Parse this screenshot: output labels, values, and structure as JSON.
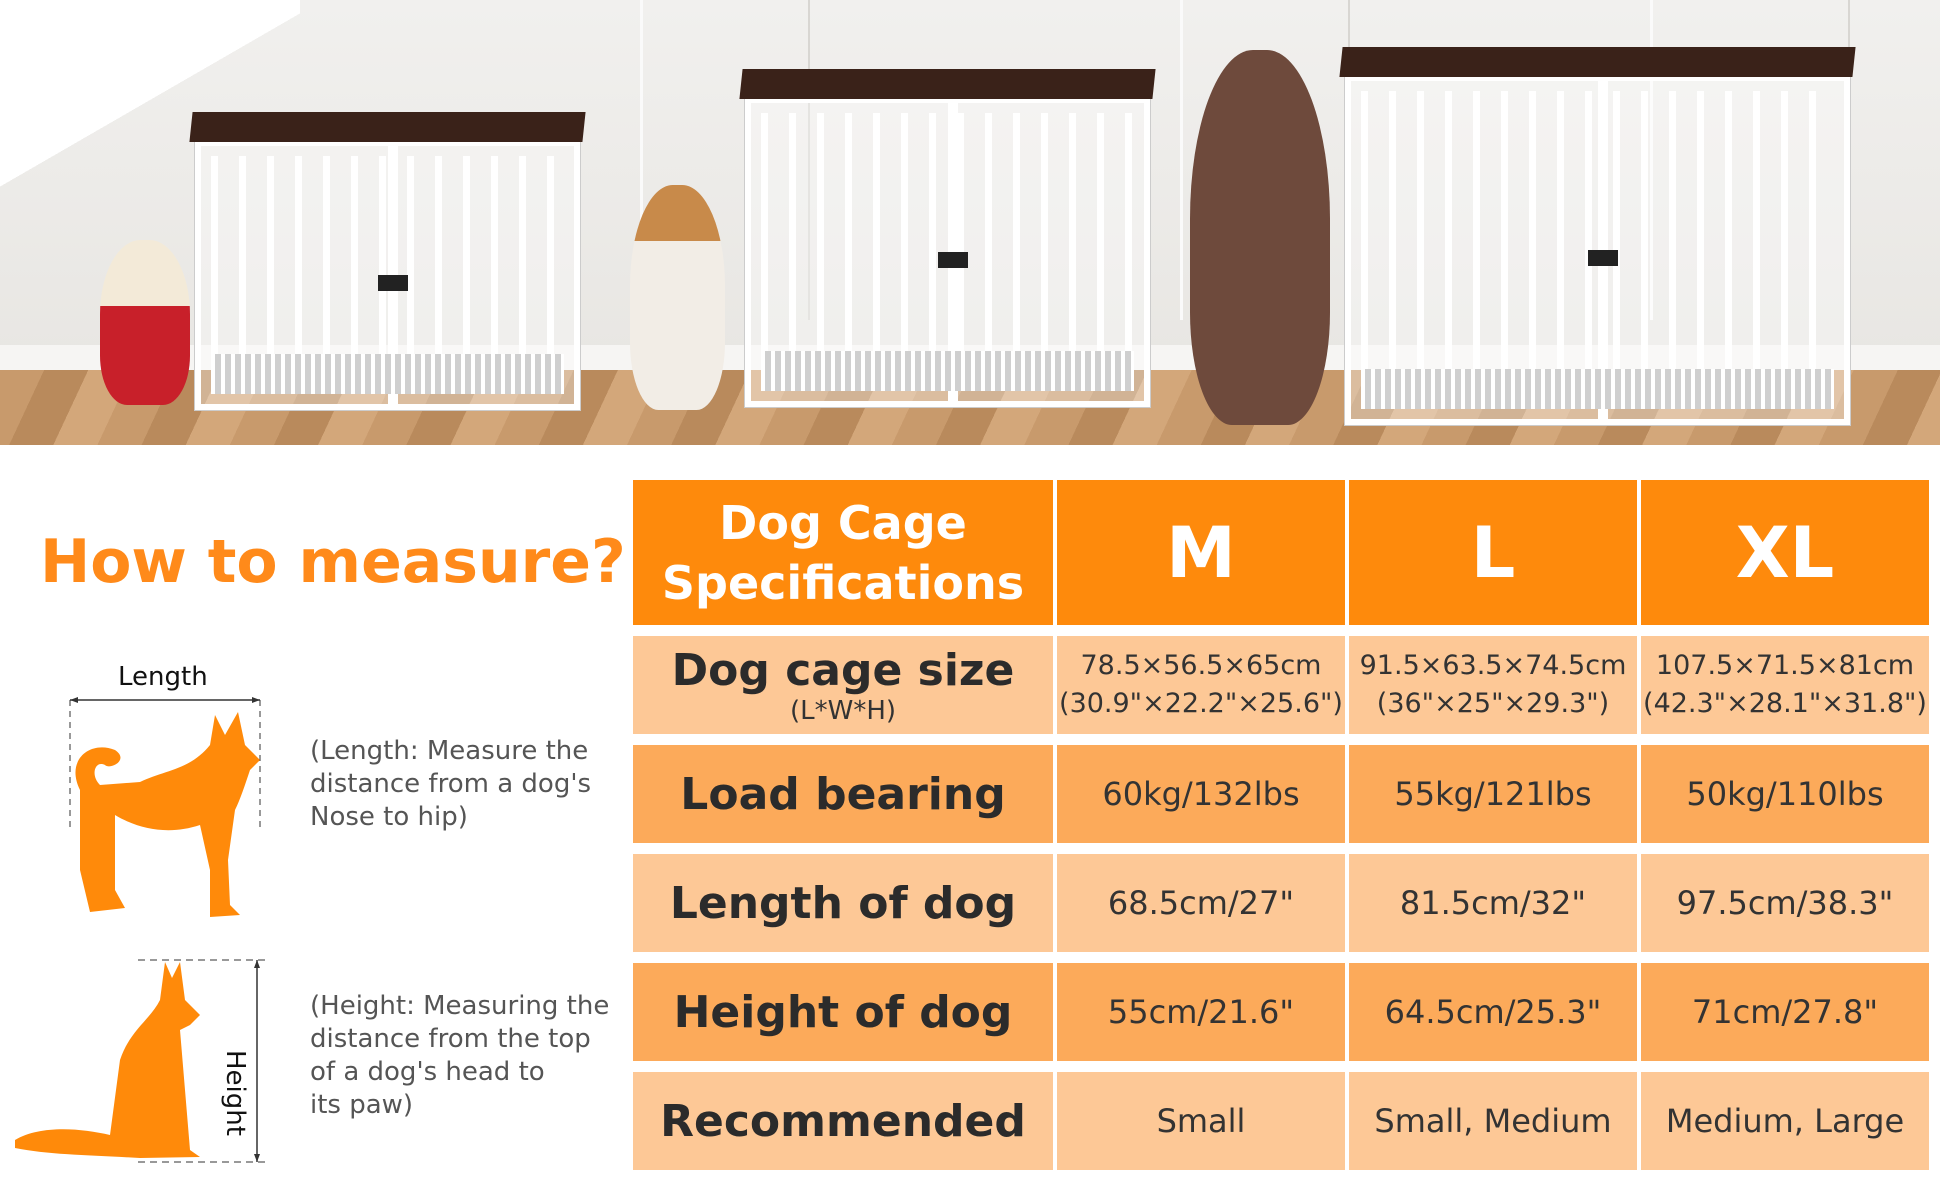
{
  "colors": {
    "accent": "#fe8a0c",
    "title": "#ff8a1a",
    "row_light": "#fdc896",
    "row_medium": "#fcaa5a"
  },
  "photo": {
    "description_icons": [
      "cage-m",
      "cage-l",
      "cage-xl",
      "dog-small",
      "dog-beagle",
      "dog-large"
    ]
  },
  "measure": {
    "title": "How to measure?",
    "length_label": "Length",
    "length_desc": [
      "(Length: Measure the",
      "distance from a dog's",
      "Nose to hip)"
    ],
    "height_label": "Height",
    "height_desc": [
      "(Height: Measuring the",
      "distance from the top",
      "of a dog's head to",
      "its paw)"
    ]
  },
  "table": {
    "header": {
      "label_lines": [
        "Dog Cage",
        "Specifications"
      ],
      "sizes": [
        "M",
        "L",
        "XL"
      ]
    },
    "rows": [
      {
        "label": "Dog cage size",
        "sublabel": "(L*W*H)",
        "values": [
          [
            "78.5×56.5×65cm",
            "(30.9\"×22.2\"×25.6\")"
          ],
          [
            "91.5×63.5×74.5cm",
            "(36\"×25\"×29.3\")"
          ],
          [
            "107.5×71.5×81cm",
            "(42.3\"×28.1\"×31.8\")"
          ]
        ]
      },
      {
        "label": "Load bearing",
        "values": [
          "60kg/132lbs",
          "55kg/121lbs",
          "50kg/110lbs"
        ]
      },
      {
        "label": "Length of dog",
        "values": [
          "68.5cm/27\"",
          "81.5cm/32\"",
          "97.5cm/38.3\""
        ]
      },
      {
        "label": "Height of dog",
        "values": [
          "55cm/21.6\"",
          "64.5cm/25.3\"",
          "71cm/27.8\""
        ]
      },
      {
        "label": "Recommended",
        "values": [
          "Small",
          "Small, Medium",
          "Medium, Large"
        ]
      }
    ]
  }
}
